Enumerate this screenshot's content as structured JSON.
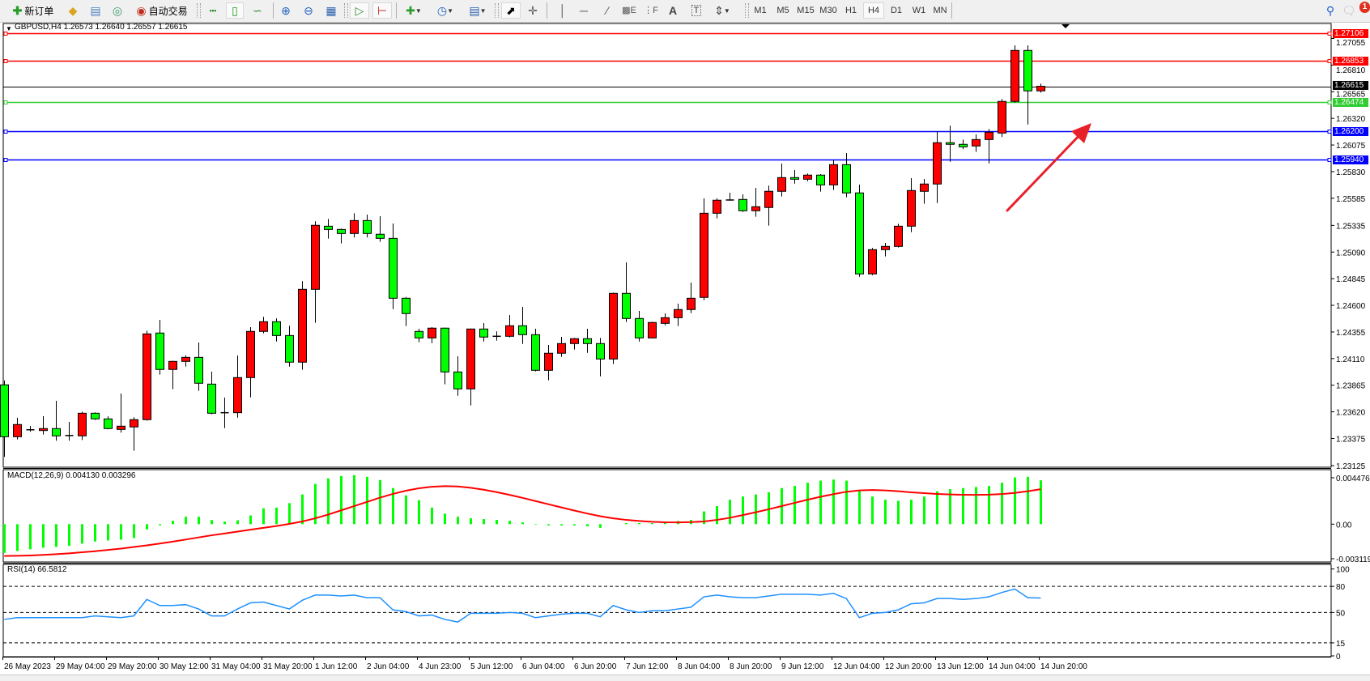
{
  "toolbar": {
    "new_order_label": "新订单",
    "auto_trading_label": "自动交易",
    "timeframes": [
      "M1",
      "M5",
      "M15",
      "M30",
      "H1",
      "H4",
      "D1",
      "W1",
      "MN"
    ],
    "active_timeframe": "H4",
    "notification_count": "1",
    "icons": [
      "new-order-icon",
      "market-watch-icon",
      "navigator-icon",
      "signals-icon",
      "auto-trading-icon",
      "bar-chart-icon",
      "candlestick-icon",
      "line-chart-icon",
      "zoom-in-icon",
      "zoom-out-icon",
      "tile-windows-icon",
      "auto-scroll-icon",
      "chart-shift-icon",
      "template-icon",
      "periods-clock-icon",
      "indicators-icon",
      "cursor-icon",
      "crosshair-icon",
      "vertical-line-icon",
      "horizontal-line-icon",
      "trendline-icon",
      "fibonacci-expansion-icon",
      "fibonacci-fan-icon",
      "text-icon",
      "text-label-icon",
      "arrows-icon",
      "search-icon",
      "notification-icon"
    ]
  },
  "chart": {
    "header": "GBPUSD,H4  1.26573 1.26640 1.26557 1.26615",
    "bull_color": "#ff0000",
    "bear_color": "#00ff00",
    "price_axis_ticks": [
      "1.27055",
      "1.26810",
      "1.26565",
      "1.26320",
      "1.26075",
      "1.25830",
      "1.25585",
      "1.25335",
      "1.25090",
      "1.24845",
      "1.24600",
      "1.24355",
      "1.24110",
      "1.23865",
      "1.23620",
      "1.23375",
      "1.23125"
    ],
    "horizontal_lines": [
      {
        "price": "1.27106",
        "color": "#ff0000"
      },
      {
        "price": "1.26853",
        "color": "#ff0000"
      },
      {
        "price": "1.26615",
        "color": "#000000"
      },
      {
        "price": "1.26474",
        "color": "#32cd32"
      },
      {
        "price": "1.26200",
        "color": "#0000ff"
      },
      {
        "price": "1.25940",
        "color": "#0000ff"
      }
    ],
    "time_labels": [
      "26 May 2023",
      "29 May 04:00",
      "29 May 20:00",
      "30 May 12:00",
      "31 May 04:00",
      "31 May 20:00",
      "1 Jun 12:00",
      "2 Jun 04:00",
      "4 Jun 23:00",
      "5 Jun 12:00",
      "6 Jun 04:00",
      "6 Jun 20:00",
      "7 Jun 12:00",
      "8 Jun 04:00",
      "8 Jun 20:00",
      "9 Jun 12:00",
      "12 Jun 04:00",
      "12 Jun 20:00",
      "13 Jun 12:00",
      "14 Jun 04:00",
      "14 Jun 20:00"
    ],
    "annotation": {
      "type": "arrow",
      "color": "#e8202a",
      "direction": "up-right"
    }
  },
  "chart_data": [
    {
      "type": "candlestick",
      "title": "GBPUSD,H4",
      "ylim": [
        1.23125,
        1.27106
      ],
      "ohlc": [
        [
          1.23868,
          1.23908,
          1.23205,
          1.23391
        ],
        [
          1.23391,
          1.23565,
          1.23366,
          1.23503
        ],
        [
          1.2345,
          1.2349,
          1.23436,
          1.23455
        ],
        [
          1.23448,
          1.2358,
          1.23411,
          1.23466
        ],
        [
          1.23466,
          1.23721,
          1.23354,
          1.23399
        ],
        [
          1.23399,
          1.23528,
          1.23354,
          1.23402
        ],
        [
          1.23399,
          1.23622,
          1.23361,
          1.23607
        ],
        [
          1.23607,
          1.23615,
          1.23545,
          1.23555
        ],
        [
          1.23555,
          1.23578,
          1.2346,
          1.23466
        ],
        [
          1.23458,
          1.23788,
          1.23429,
          1.23488
        ],
        [
          1.23481,
          1.2357,
          1.23262,
          1.23548
        ],
        [
          1.23548,
          1.24367,
          1.2354,
          1.24337
        ],
        [
          1.24345,
          1.24466,
          1.23962,
          1.2401
        ],
        [
          1.2401,
          1.2409,
          1.23828,
          1.24084
        ],
        [
          1.24084,
          1.24138,
          1.24036,
          1.24121
        ],
        [
          1.24121,
          1.24258,
          1.23813,
          1.23883
        ],
        [
          1.23875,
          1.23989,
          1.23597,
          1.23607
        ],
        [
          1.23607,
          1.23751,
          1.2347,
          1.23612
        ],
        [
          1.23612,
          1.24138,
          1.23567,
          1.23935
        ],
        [
          1.23935,
          1.24399,
          1.23753,
          1.2436
        ],
        [
          1.2436,
          1.24494,
          1.24342,
          1.24449
        ],
        [
          1.24449,
          1.24479,
          1.24267,
          1.24322
        ],
        [
          1.24322,
          1.24412,
          1.24036,
          1.24077
        ],
        [
          1.24077,
          1.24822,
          1.24007,
          1.24747
        ],
        [
          1.24747,
          1.25373,
          1.24439,
          1.25336
        ],
        [
          1.25328,
          1.25395,
          1.25214,
          1.25298
        ],
        [
          1.25298,
          1.25306,
          1.25169,
          1.25261
        ],
        [
          1.25261,
          1.25447,
          1.25224,
          1.2538
        ],
        [
          1.2538,
          1.25435,
          1.25224,
          1.25261
        ],
        [
          1.25254,
          1.2542,
          1.25184,
          1.25216
        ],
        [
          1.25216,
          1.25353,
          1.24565,
          1.24665
        ],
        [
          1.24665,
          1.24677,
          1.24409,
          1.24524
        ],
        [
          1.2436,
          1.24384,
          1.2426,
          1.243
        ],
        [
          1.243,
          1.24399,
          1.24252,
          1.2439
        ],
        [
          1.2439,
          1.24395,
          1.23873,
          1.23987
        ],
        [
          1.23987,
          1.24131,
          1.23768,
          1.23831
        ],
        [
          1.23831,
          1.24385,
          1.23679,
          1.24382
        ],
        [
          1.24382,
          1.24436,
          1.24267,
          1.24308
        ],
        [
          1.2431,
          1.2436,
          1.24275,
          1.24315
        ],
        [
          1.24315,
          1.24511,
          1.24305,
          1.24412
        ],
        [
          1.24412,
          1.24585,
          1.24245,
          1.2433
        ],
        [
          1.2433,
          1.24384,
          1.23992,
          1.24002
        ],
        [
          1.24002,
          1.24235,
          1.2391,
          1.24159
        ],
        [
          1.24159,
          1.2431,
          1.24126,
          1.24248
        ],
        [
          1.24248,
          1.243,
          1.24193,
          1.24293
        ],
        [
          1.24293,
          1.24384,
          1.24163,
          1.24248
        ],
        [
          1.24248,
          1.243,
          1.23947,
          1.24106
        ],
        [
          1.24106,
          1.24717,
          1.24059,
          1.2471
        ],
        [
          1.2471,
          1.24995,
          1.24446,
          1.24479
        ],
        [
          1.24479,
          1.24548,
          1.24267,
          1.243
        ],
        [
          1.243,
          1.24449,
          1.24295,
          1.24442
        ],
        [
          1.24434,
          1.24526,
          1.24416,
          1.24486
        ],
        [
          1.24486,
          1.24615,
          1.24409,
          1.24561
        ],
        [
          1.24561,
          1.24809,
          1.24528,
          1.24665
        ],
        [
          1.24673,
          1.25584,
          1.24647,
          1.25447
        ],
        [
          1.25447,
          1.25584,
          1.254,
          1.25567
        ],
        [
          1.25565,
          1.25636,
          1.25562,
          1.25569
        ],
        [
          1.25574,
          1.25621,
          1.25459,
          1.2547
        ],
        [
          1.2547,
          1.25681,
          1.25415,
          1.25507
        ],
        [
          1.255,
          1.25701,
          1.25333,
          1.25649
        ],
        [
          1.25649,
          1.25904,
          1.25601,
          1.25775
        ],
        [
          1.25775,
          1.25845,
          1.2572,
          1.2576
        ],
        [
          1.2576,
          1.25812,
          1.25742,
          1.25798
        ],
        [
          1.25798,
          1.25807,
          1.25646,
          1.25708
        ],
        [
          1.25708,
          1.25934,
          1.25661,
          1.25894
        ],
        [
          1.25894,
          1.26001,
          1.25594,
          1.25634
        ],
        [
          1.25634,
          1.2571,
          1.24863,
          1.24889
        ],
        [
          1.24889,
          1.25127,
          1.24878,
          1.25112
        ],
        [
          1.25112,
          1.25174,
          1.2505,
          1.25142
        ],
        [
          1.25142,
          1.2535,
          1.25132,
          1.25328
        ],
        [
          1.25328,
          1.2577,
          1.25273,
          1.25656
        ],
        [
          1.25649,
          1.25763,
          1.25534,
          1.25716
        ],
        [
          1.25716,
          1.26202,
          1.25541,
          1.26096
        ],
        [
          1.26096,
          1.26252,
          1.25921,
          1.26081
        ],
        [
          1.26081,
          1.26125,
          1.26036,
          1.26058
        ],
        [
          1.26066,
          1.26172,
          1.26011,
          1.26125
        ],
        [
          1.26125,
          1.26222,
          1.25906,
          1.26192
        ],
        [
          1.26185,
          1.26498,
          1.26148,
          1.26476
        ],
        [
          1.26476,
          1.26992,
          1.26465,
          1.26945
        ],
        [
          1.26945,
          1.26992,
          1.26264,
          1.26573
        ],
        [
          1.26573,
          1.2664,
          1.26557,
          1.26615
        ]
      ]
    },
    {
      "type": "bar",
      "title": "MACD(12,26,9) 0.004130 0.003296",
      "ylim": [
        -0.003119,
        0.004476
      ],
      "tick_labels": [
        "0.004476",
        "0.00",
        "-0.003119"
      ],
      "macd_color": "#00ff00",
      "signal_color": "#ff0000",
      "macd": [
        -0.00271,
        -0.00253,
        -0.00237,
        -0.00222,
        -0.00214,
        -0.00204,
        -0.00184,
        -0.00164,
        -0.00154,
        -0.00146,
        -0.00131,
        -0.0005,
        -0.00011,
        0.00032,
        0.0007,
        0.0007,
        0.00039,
        0.00024,
        0.00037,
        0.00082,
        0.00149,
        0.00156,
        0.00198,
        0.0028,
        0.00379,
        0.00431,
        0.00454,
        0.00462,
        0.00446,
        0.00416,
        0.0034,
        0.00271,
        0.00225,
        0.00156,
        0.00099,
        0.0007,
        0.00055,
        0.00048,
        0.0004,
        0.00032,
        0.00017,
        -5e-05,
        -0.00012,
        -0.00012,
        -0.00012,
        -0.0002,
        -0.00035,
        0.0,
        0.0001,
        0.0001,
        0.0001,
        0.00017,
        0.0003,
        0.0004,
        0.0012,
        0.0017,
        0.0023,
        0.0026,
        0.0028,
        0.003,
        0.0034,
        0.0036,
        0.0039,
        0.0041,
        0.0042,
        0.0041,
        0.0032,
        0.0026,
        0.0023,
        0.0022,
        0.0023,
        0.0026,
        0.0031,
        0.0033,
        0.0034,
        0.0035,
        0.0036,
        0.0039,
        0.0044,
        0.00446,
        0.00413
      ],
      "signal": [
        -0.003,
        -0.00298,
        -0.00295,
        -0.0029,
        -0.00283,
        -0.00275,
        -0.00265,
        -0.00255,
        -0.00243,
        -0.0023,
        -0.00215,
        -0.002,
        -0.00183,
        -0.00165,
        -0.00145,
        -0.00125,
        -0.00105,
        -0.00088,
        -0.0007,
        -0.00052,
        -0.00035,
        -0.00018,
        2e-05,
        0.00025,
        0.00055,
        0.0009,
        0.0013,
        0.0017,
        0.0021,
        0.0025,
        0.00285,
        0.00315,
        0.00338,
        0.00352,
        0.00358,
        0.00355,
        0.00343,
        0.00325,
        0.00302,
        0.00276,
        0.00248,
        0.00218,
        0.00188,
        0.00158,
        0.00128,
        0.001,
        0.00075,
        0.00055,
        0.0004,
        0.0003,
        0.00022,
        0.00018,
        0.00017,
        0.00019,
        0.00025,
        0.0004,
        0.0006,
        0.00085,
        0.00112,
        0.0014,
        0.0017,
        0.002,
        0.0023,
        0.00258,
        0.00283,
        0.00305,
        0.00318,
        0.00322,
        0.00318,
        0.0031,
        0.003,
        0.00292,
        0.00285,
        0.0028,
        0.00277,
        0.00276,
        0.00278,
        0.00284,
        0.00294,
        0.0031,
        0.003296
      ]
    },
    {
      "type": "line",
      "title": "RSI(14) 66.5812",
      "ylim": [
        0,
        100
      ],
      "tick_labels": [
        "100",
        "80",
        "50",
        "15",
        "0"
      ],
      "levels": [
        80,
        50,
        15
      ],
      "color": "#1e90ff",
      "values": [
        42,
        44,
        44,
        44,
        44,
        44,
        44,
        46,
        45,
        44,
        46,
        65,
        58,
        58,
        59,
        54,
        46,
        46,
        54,
        61,
        62,
        58,
        54,
        64,
        70,
        70,
        69,
        70,
        67,
        67,
        53,
        51,
        46,
        47,
        42,
        39,
        49,
        49,
        49,
        50,
        49,
        44,
        46,
        48,
        49,
        49,
        45,
        58,
        53,
        50,
        52,
        52,
        54,
        56,
        68,
        70,
        68,
        67,
        67,
        69,
        71,
        71,
        71,
        70,
        72,
        66,
        44,
        49,
        50,
        53,
        60,
        61,
        66,
        66,
        65,
        66,
        68,
        73,
        77,
        67,
        66.58
      ]
    }
  ]
}
